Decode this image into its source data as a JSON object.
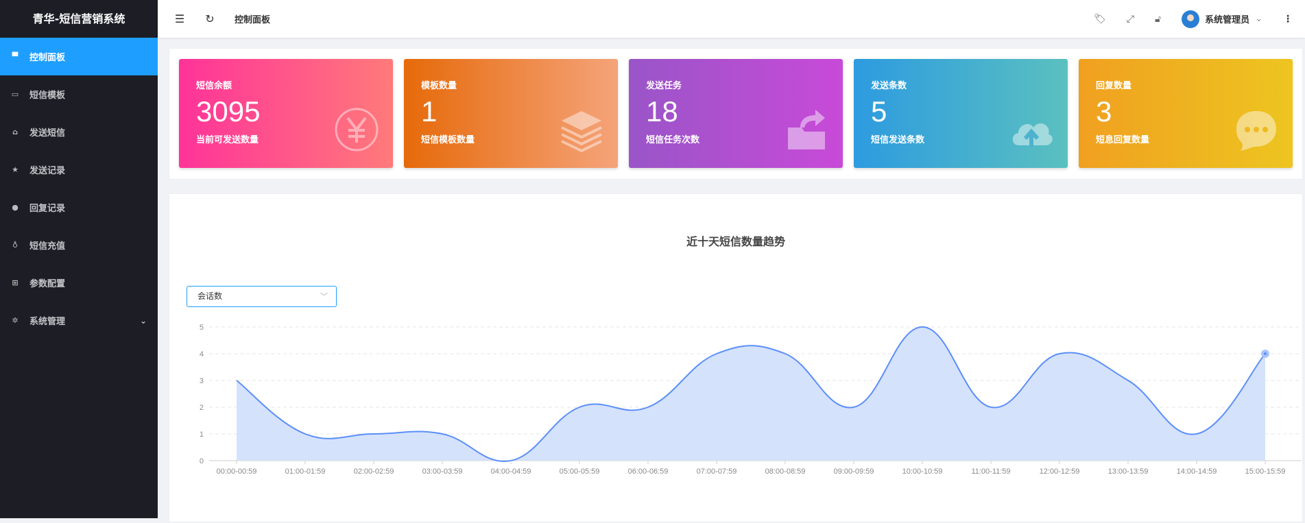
{
  "app": {
    "title": "青华-短信营销系统"
  },
  "sidebar": {
    "items": [
      {
        "label": "控制面板",
        "icon": "monitor-icon",
        "active": true
      },
      {
        "label": "短信模板",
        "icon": "template-icon"
      },
      {
        "label": "发送短信",
        "icon": "send-icon"
      },
      {
        "label": "发送记录",
        "icon": "star-icon"
      },
      {
        "label": "回复记录",
        "icon": "chat-icon"
      },
      {
        "label": "短信充值",
        "icon": "money-bag-icon"
      },
      {
        "label": "参数配置",
        "icon": "windows-icon"
      },
      {
        "label": "系统管理",
        "icon": "gear-icon",
        "expandable": true
      }
    ]
  },
  "header": {
    "breadcrumb": "控制面板",
    "user": "系统管理员"
  },
  "cards": [
    {
      "title": "短信余额",
      "value": "3095",
      "sub": "当前可发送数量",
      "icon": "yen-icon",
      "from": "#ff3399",
      "to": "#ff7a7a"
    },
    {
      "title": "模板数量",
      "value": "1",
      "sub": "短信模板数量",
      "icon": "layers-icon",
      "from": "#e66a0a",
      "to": "#f5a37a"
    },
    {
      "title": "发送任务",
      "value": "18",
      "sub": "短信任务次数",
      "icon": "folder-share-icon",
      "from": "#9a55c8",
      "to": "#c84ad8"
    },
    {
      "title": "发送条数",
      "value": "5",
      "sub": "短信发送条数",
      "icon": "cloud-upload-icon",
      "from": "#2d9be0",
      "to": "#5ac0c0"
    },
    {
      "title": "回复数量",
      "value": "3",
      "sub": "短息回复数量",
      "icon": "message-icon",
      "from": "#f0a020",
      "to": "#edc520"
    }
  ],
  "chart_select": {
    "value": "会话数"
  },
  "chart_data": {
    "type": "area",
    "title": "近十天短信数量趋势",
    "categories": [
      "00:00-00:59",
      "01:00-01:59",
      "02:00-02:59",
      "03:00-03:59",
      "04:00-04:59",
      "05:00-05:59",
      "06:00-06:59",
      "07:00-07:59",
      "08:00-08:59",
      "09:00-09:59",
      "10:00-10:59",
      "11:00-11:59",
      "12:00-12:59",
      "13:00-13:59",
      "14:00-14:59",
      "15:00-15:59"
    ],
    "values": [
      3,
      1,
      1,
      1,
      0,
      2,
      2,
      4,
      4,
      2,
      5,
      2,
      4,
      3,
      1,
      4
    ],
    "ylim": [
      0,
      5
    ],
    "yticks": [
      0,
      1,
      2,
      3,
      4,
      5
    ],
    "smooth": true,
    "grid": true,
    "line_color": "#5b8ff9",
    "fill_color": "#d5e2fb"
  }
}
